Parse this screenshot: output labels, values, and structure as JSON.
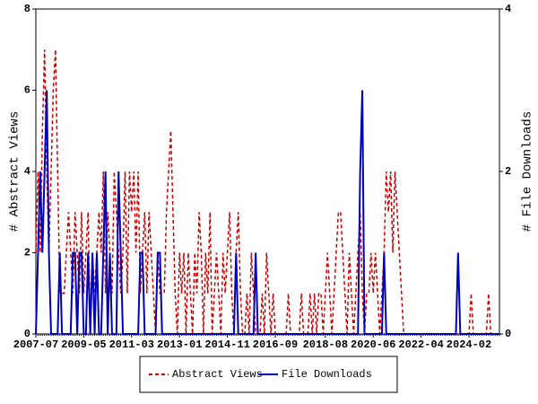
{
  "chart_data": {
    "type": "line",
    "y_label": "# Abstract Views",
    "y2_label": "# File Downloads",
    "categories": [
      "2007-07",
      null,
      null,
      null,
      null,
      null,
      null,
      null,
      null,
      null,
      null,
      null,
      null,
      null,
      null,
      null,
      null,
      null,
      null,
      null,
      null,
      null,
      "2009-05",
      null,
      null,
      null,
      null,
      null,
      null,
      null,
      null,
      null,
      null,
      null,
      null,
      null,
      null,
      null,
      null,
      null,
      null,
      null,
      null,
      null,
      "2011-03",
      null,
      null,
      null,
      null,
      null,
      null,
      null,
      null,
      null,
      null,
      null,
      null,
      null,
      null,
      null,
      null,
      null,
      null,
      null,
      null,
      null,
      "2013-01",
      null,
      null,
      null,
      null,
      null,
      null,
      null,
      null,
      null,
      null,
      null,
      null,
      null,
      null,
      null,
      null,
      null,
      null,
      null,
      null,
      null,
      "2014-11",
      null,
      null,
      null,
      null,
      null,
      null,
      null,
      null,
      null,
      null,
      null,
      null,
      null,
      null,
      null,
      null,
      null,
      null,
      null,
      null,
      null,
      "2016-09",
      null,
      null,
      null,
      null,
      null,
      null,
      null,
      null,
      null,
      null,
      null,
      null,
      null,
      null,
      null,
      null,
      null,
      null,
      null,
      null,
      null,
      null,
      "2018-08",
      null,
      null,
      null,
      null,
      null,
      null,
      null,
      null,
      null,
      null,
      null,
      null,
      null,
      null,
      null,
      null,
      null,
      null,
      null,
      null,
      null,
      "2020-06",
      null,
      null,
      null,
      null,
      null,
      null,
      null,
      null,
      null,
      null,
      null,
      null,
      null,
      null,
      null,
      null,
      null,
      null,
      null,
      null,
      null,
      "2022-04",
      null,
      null,
      null,
      null,
      null,
      null,
      null,
      null,
      null,
      null,
      null,
      null,
      null,
      null,
      null,
      null,
      null,
      null,
      null,
      null,
      null,
      "2024-02",
      null,
      null,
      null,
      null,
      null,
      null,
      null,
      null,
      null,
      null,
      null,
      null,
      null,
      null
    ],
    "series": [
      {
        "name": "Abstract Views",
        "color": "#cc0000",
        "dash": true,
        "values": [
          2,
          4,
          2,
          5,
          7,
          4,
          2,
          4,
          6,
          7,
          4,
          1,
          1,
          1,
          2,
          3,
          2,
          1,
          3,
          2,
          1,
          3,
          1,
          2,
          3,
          0,
          2,
          1,
          2,
          3,
          2,
          4,
          1,
          3,
          2,
          1,
          4,
          3,
          2,
          1,
          2,
          4,
          1,
          4,
          3,
          4,
          2,
          4,
          1,
          2,
          3,
          1,
          3,
          2,
          1,
          0,
          2,
          1,
          1,
          1,
          3,
          4,
          5,
          3,
          1,
          0,
          2,
          1,
          2,
          0,
          2,
          1,
          0,
          2,
          1,
          3,
          2,
          0,
          2,
          1,
          3,
          0,
          1,
          2,
          1,
          0,
          2,
          1,
          2,
          3,
          1,
          0,
          2,
          3,
          1,
          0,
          0,
          1,
          0,
          2,
          1,
          0,
          0,
          0,
          1,
          0,
          2,
          1,
          0,
          1,
          0,
          0,
          0,
          0,
          0,
          0,
          1,
          0,
          0,
          0,
          0,
          0,
          1,
          0,
          0,
          0,
          1,
          0,
          1,
          0,
          1,
          1,
          0,
          1,
          2,
          1,
          0,
          1,
          2,
          3,
          3,
          2,
          1,
          0,
          2,
          1,
          0,
          1,
          2,
          3,
          1,
          0,
          1,
          1,
          2,
          1,
          2,
          1,
          0,
          1,
          2,
          4,
          3,
          4,
          2,
          4,
          3,
          2,
          1,
          0,
          0,
          0,
          0,
          0,
          0,
          0,
          0,
          0,
          0,
          0,
          0,
          0,
          0,
          0,
          0,
          0,
          0,
          0,
          0,
          0,
          0,
          0,
          0,
          0,
          0,
          0,
          0,
          0,
          0,
          0,
          1,
          0,
          0,
          0,
          0,
          0,
          0,
          0,
          1,
          0,
          0,
          0,
          0,
          0
        ]
      },
      {
        "name": "File Downloads",
        "color": "#0000bb",
        "axis": "y2",
        "values": [
          0,
          1,
          2,
          1,
          2,
          3,
          1,
          0,
          0,
          0,
          0,
          1,
          0,
          0,
          0,
          0,
          0,
          1,
          1,
          0,
          1,
          1,
          0,
          0,
          1,
          0,
          1,
          0,
          1,
          0,
          0,
          1,
          2,
          0,
          1,
          0,
          0,
          0,
          2,
          1,
          0,
          0,
          0,
          0,
          0,
          0,
          0,
          0,
          1,
          1,
          0,
          0,
          0,
          0,
          0,
          0,
          1,
          1,
          0,
          0,
          0,
          0,
          0,
          0,
          0,
          0,
          0,
          0,
          0,
          0,
          0,
          0,
          0,
          0,
          0,
          0,
          0,
          0,
          0,
          0,
          0,
          0,
          0,
          0,
          0,
          0,
          0,
          0,
          0,
          0,
          0,
          0,
          1,
          0,
          0,
          0,
          0,
          0,
          0,
          0,
          0,
          1,
          0,
          0,
          0,
          0,
          0,
          0,
          0,
          0,
          0,
          0,
          0,
          0,
          0,
          0,
          0,
          0,
          0,
          0,
          0,
          0,
          0,
          0,
          0,
          0,
          0,
          0,
          0,
          0,
          0,
          0,
          0,
          0,
          0,
          0,
          0,
          0,
          0,
          0,
          0,
          0,
          0,
          0,
          0,
          0,
          0,
          0,
          0,
          2,
          3,
          0,
          0,
          0,
          0,
          0,
          0,
          0,
          0,
          0,
          1,
          0,
          0,
          0,
          0,
          0,
          0,
          0,
          0,
          0,
          0,
          0,
          0,
          0,
          0,
          0,
          0,
          0,
          0,
          0,
          0,
          0,
          0,
          0,
          0,
          0,
          0,
          0,
          0,
          0,
          0,
          0,
          0,
          0,
          1,
          0,
          0,
          0,
          0,
          0,
          0,
          0,
          0,
          0,
          0,
          0,
          0,
          0,
          0,
          0,
          0,
          0,
          0,
          0
        ]
      }
    ],
    "ylim": [
      0,
      8
    ],
    "yticks": [
      0,
      2,
      4,
      6,
      8
    ],
    "y2lim": [
      0,
      4
    ],
    "y2ticks": [
      0,
      2,
      4
    ],
    "legend": "bottom"
  }
}
